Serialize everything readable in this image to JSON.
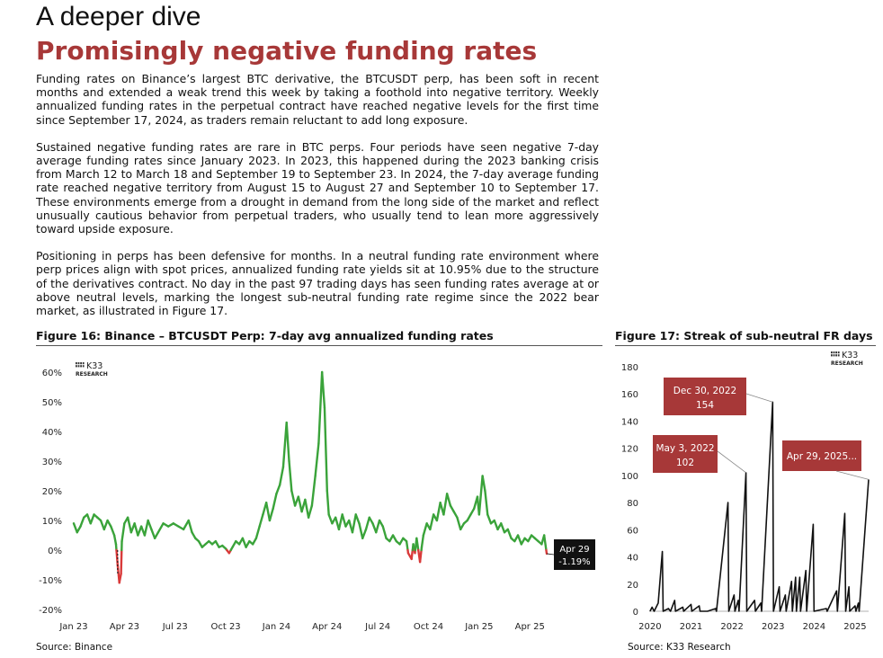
{
  "header": {
    "kicker": "A deeper dive",
    "title": "Promisingly negative funding rates"
  },
  "paragraphs": [
    "Funding rates on Binance’s largest BTC derivative, the BTCUSDT perp, has been soft in recent months and extended a weak trend this week by taking a foothold into negative territory. Weekly annualized funding rates in the perpetual contract have reached negative levels for the first time since September 17, 2024, as traders remain reluctant to add long exposure.",
    "Sustained negative funding rates are rare in BTC perps. Four periods have seen negative 7-day average funding rates since January 2023. In 2023, this happened during the 2023 banking crisis from March 12 to March 18 and September 19 to September 23. In 2024, the 7-day average funding rate reached negative territory from August 15 to August 27 and September 10 to September 17. These environments emerge from a drought in demand from the long side of the market and reflect unusually cautious behavior from perpetual traders, who usually tend to lean more aggressively toward upside exposure.",
    "Positioning in perps has been defensive for months. In a neutral funding rate environment where perp prices align with spot prices, annualized funding rate yields sit at 10.95% due to the structure of the derivatives contract. No day in the past 97 trading days has seen funding rates average at or above neutral levels, marking the longest sub-neutral funding rate regime since the 2022 bear market, as illustrated in Figure 17."
  ],
  "logo": {
    "brand": "K33",
    "sub": "RESEARCH"
  },
  "chart_data": [
    {
      "type": "line",
      "title": "Figure 16: Binance – BTCUSDT Perp: 7-day avg annualized funding rates",
      "source": "Source: Binance",
      "y_ticks": [
        "60%",
        "50%",
        "40%",
        "30%",
        "20%",
        "10%",
        "0%",
        "-10%",
        "-20%"
      ],
      "ylim": [
        -20,
        60
      ],
      "x_ticks": [
        "Jan 23",
        "Apr 23",
        "Jul 23",
        "Oct 23",
        "Jan 24",
        "Apr 24",
        "Jul 24",
        "Oct 24",
        "Jan 25",
        "Apr 25"
      ],
      "x_tick_months": [
        0,
        3,
        6,
        9,
        12,
        15,
        18,
        21,
        24,
        27
      ],
      "xlim_months": [
        0,
        28
      ],
      "colors": {
        "positive": "#3aa33a",
        "negative": "#d93a3a"
      },
      "points": [
        [
          0.0,
          9
        ],
        [
          0.2,
          6
        ],
        [
          0.4,
          8
        ],
        [
          0.6,
          11
        ],
        [
          0.8,
          12
        ],
        [
          1.0,
          9
        ],
        [
          1.2,
          12
        ],
        [
          1.4,
          11
        ],
        [
          1.6,
          10
        ],
        [
          1.8,
          7
        ],
        [
          2.0,
          10
        ],
        [
          2.2,
          8
        ],
        [
          2.4,
          5
        ],
        [
          2.5,
          2
        ],
        [
          2.6,
          -5
        ],
        [
          2.7,
          -11
        ],
        [
          2.8,
          -8
        ],
        [
          2.85,
          3
        ],
        [
          3.0,
          9
        ],
        [
          3.2,
          11
        ],
        [
          3.4,
          6
        ],
        [
          3.6,
          9
        ],
        [
          3.8,
          5
        ],
        [
          4.0,
          8
        ],
        [
          4.2,
          5
        ],
        [
          4.4,
          10
        ],
        [
          4.6,
          7
        ],
        [
          4.8,
          4
        ],
        [
          5.0,
          6
        ],
        [
          5.3,
          9
        ],
        [
          5.6,
          8
        ],
        [
          5.9,
          9
        ],
        [
          6.2,
          8
        ],
        [
          6.5,
          7
        ],
        [
          6.8,
          10
        ],
        [
          7.0,
          6
        ],
        [
          7.2,
          4
        ],
        [
          7.4,
          3
        ],
        [
          7.6,
          1
        ],
        [
          7.8,
          2
        ],
        [
          8.0,
          3
        ],
        [
          8.2,
          2
        ],
        [
          8.4,
          3
        ],
        [
          8.6,
          1
        ],
        [
          8.8,
          1.5
        ],
        [
          9.0,
          0.5
        ],
        [
          9.2,
          -1
        ],
        [
          9.4,
          1
        ],
        [
          9.6,
          3
        ],
        [
          9.8,
          2
        ],
        [
          10.0,
          4
        ],
        [
          10.2,
          1
        ],
        [
          10.4,
          3
        ],
        [
          10.6,
          2
        ],
        [
          10.8,
          4
        ],
        [
          11.0,
          8
        ],
        [
          11.2,
          12
        ],
        [
          11.4,
          16
        ],
        [
          11.6,
          10
        ],
        [
          11.8,
          14
        ],
        [
          12.0,
          19
        ],
        [
          12.2,
          22
        ],
        [
          12.4,
          28
        ],
        [
          12.6,
          43
        ],
        [
          12.75,
          30
        ],
        [
          12.9,
          20
        ],
        [
          13.1,
          15
        ],
        [
          13.3,
          18
        ],
        [
          13.5,
          13
        ],
        [
          13.7,
          17
        ],
        [
          13.9,
          11
        ],
        [
          14.1,
          15
        ],
        [
          14.3,
          25
        ],
        [
          14.5,
          36
        ],
        [
          14.7,
          60
        ],
        [
          14.85,
          48
        ],
        [
          15.0,
          20
        ],
        [
          15.1,
          12
        ],
        [
          15.3,
          9
        ],
        [
          15.5,
          11
        ],
        [
          15.7,
          7
        ],
        [
          15.9,
          12
        ],
        [
          16.1,
          8
        ],
        [
          16.3,
          10
        ],
        [
          16.5,
          6
        ],
        [
          16.7,
          12
        ],
        [
          16.9,
          9
        ],
        [
          17.1,
          4
        ],
        [
          17.3,
          7
        ],
        [
          17.5,
          11
        ],
        [
          17.7,
          9
        ],
        [
          17.9,
          6
        ],
        [
          18.1,
          10
        ],
        [
          18.3,
          8
        ],
        [
          18.5,
          4
        ],
        [
          18.7,
          3
        ],
        [
          18.9,
          5
        ],
        [
          19.1,
          3
        ],
        [
          19.3,
          2
        ],
        [
          19.5,
          4
        ],
        [
          19.7,
          3
        ],
        [
          19.8,
          -1
        ],
        [
          20.0,
          -3
        ],
        [
          20.1,
          2
        ],
        [
          20.2,
          -1
        ],
        [
          20.3,
          4
        ],
        [
          20.5,
          -4
        ],
        [
          20.6,
          1
        ],
        [
          20.7,
          5
        ],
        [
          20.9,
          9
        ],
        [
          21.1,
          7
        ],
        [
          21.3,
          12
        ],
        [
          21.5,
          10
        ],
        [
          21.7,
          16
        ],
        [
          21.9,
          12
        ],
        [
          22.1,
          19
        ],
        [
          22.3,
          15
        ],
        [
          22.5,
          13
        ],
        [
          22.7,
          11
        ],
        [
          22.9,
          7
        ],
        [
          23.1,
          9
        ],
        [
          23.3,
          10
        ],
        [
          23.5,
          12
        ],
        [
          23.7,
          14
        ],
        [
          23.9,
          18
        ],
        [
          24.0,
          12
        ],
        [
          24.2,
          25
        ],
        [
          24.35,
          20
        ],
        [
          24.5,
          12
        ],
        [
          24.7,
          9
        ],
        [
          24.9,
          10
        ],
        [
          25.1,
          7
        ],
        [
          25.3,
          9
        ],
        [
          25.5,
          6
        ],
        [
          25.7,
          7
        ],
        [
          25.9,
          4
        ],
        [
          26.1,
          3
        ],
        [
          26.3,
          5
        ],
        [
          26.5,
          2
        ],
        [
          26.7,
          4
        ],
        [
          26.9,
          3
        ],
        [
          27.1,
          5
        ],
        [
          27.3,
          4
        ],
        [
          27.5,
          3
        ],
        [
          27.7,
          2
        ],
        [
          27.85,
          5
        ],
        [
          28.0,
          -1.19
        ]
      ],
      "annotation": {
        "date": "Apr 29",
        "value": "-1.19%"
      }
    },
    {
      "type": "line",
      "title": "Figure 17: Streak of sub-neutral FR days",
      "source": "Source: K33 Research",
      "y_ticks": [
        "180",
        "160",
        "140",
        "120",
        "100",
        "80",
        "60",
        "40",
        "20",
        "0"
      ],
      "ylim": [
        0,
        180
      ],
      "x_ticks": [
        "2020",
        "2021",
        "2022",
        "2023",
        "2024",
        "2025"
      ],
      "x_tick_years": [
        2020,
        2021,
        2022,
        2023,
        2024,
        2025
      ],
      "xlim_years": [
        2019.98,
        2025.33
      ],
      "line_color": "#111111",
      "points": [
        [
          2020.0,
          0
        ],
        [
          2020.05,
          3
        ],
        [
          2020.1,
          0
        ],
        [
          2020.2,
          6
        ],
        [
          2020.3,
          44
        ],
        [
          2020.32,
          0
        ],
        [
          2020.45,
          2
        ],
        [
          2020.5,
          0
        ],
        [
          2020.6,
          8
        ],
        [
          2020.62,
          0
        ],
        [
          2020.8,
          3
        ],
        [
          2020.82,
          0
        ],
        [
          2021.0,
          5
        ],
        [
          2021.02,
          0
        ],
        [
          2021.2,
          4
        ],
        [
          2021.22,
          0
        ],
        [
          2021.4,
          0
        ],
        [
          2021.6,
          2
        ],
        [
          2021.62,
          0
        ],
        [
          2021.9,
          80
        ],
        [
          2021.92,
          0
        ],
        [
          2022.05,
          12
        ],
        [
          2022.07,
          0
        ],
        [
          2022.15,
          8
        ],
        [
          2022.17,
          0
        ],
        [
          2022.34,
          102
        ],
        [
          2022.36,
          0
        ],
        [
          2022.55,
          8
        ],
        [
          2022.57,
          0
        ],
        [
          2022.7,
          6
        ],
        [
          2022.72,
          0
        ],
        [
          2022.99,
          154
        ],
        [
          2023.01,
          0
        ],
        [
          2023.15,
          18
        ],
        [
          2023.17,
          0
        ],
        [
          2023.3,
          12
        ],
        [
          2023.32,
          0
        ],
        [
          2023.45,
          22
        ],
        [
          2023.47,
          0
        ],
        [
          2023.55,
          25
        ],
        [
          2023.57,
          0
        ],
        [
          2023.65,
          25
        ],
        [
          2023.67,
          0
        ],
        [
          2023.8,
          30
        ],
        [
          2023.82,
          0
        ],
        [
          2023.98,
          64
        ],
        [
          2024.0,
          0
        ],
        [
          2024.3,
          2
        ],
        [
          2024.32,
          0
        ],
        [
          2024.55,
          15
        ],
        [
          2024.57,
          0
        ],
        [
          2024.75,
          72
        ],
        [
          2024.77,
          0
        ],
        [
          2024.85,
          18
        ],
        [
          2024.87,
          0
        ],
        [
          2025.0,
          4
        ],
        [
          2025.02,
          0
        ],
        [
          2025.08,
          6
        ],
        [
          2025.1,
          0
        ],
        [
          2025.33,
          97
        ]
      ],
      "callouts": [
        {
          "label": "Dec 30, 2022",
          "value": "154"
        },
        {
          "label": "May 3, 2022",
          "value": "102"
        },
        {
          "label": "Apr 29, 2025..."
        }
      ],
      "callout_color": "#a73838"
    }
  ]
}
